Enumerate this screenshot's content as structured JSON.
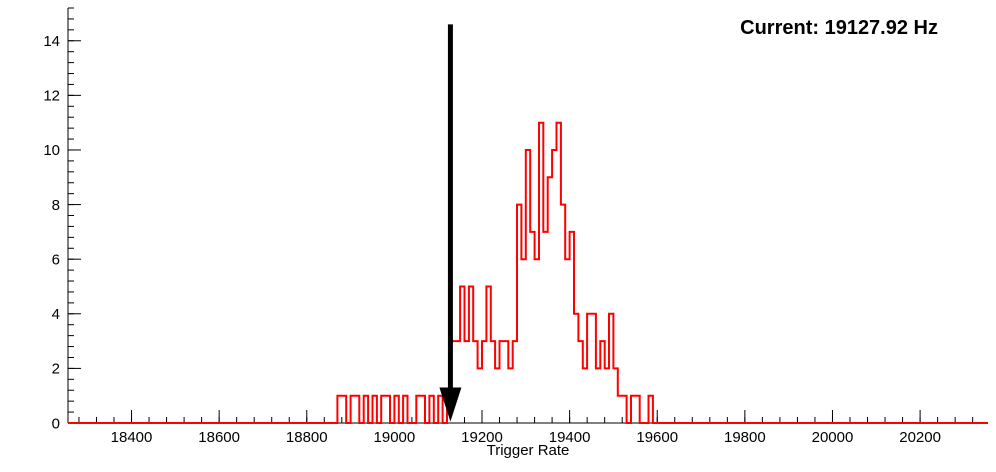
{
  "chart_data": {
    "type": "bar",
    "subtype": "step-histogram",
    "title": "",
    "xlabel": "Trigger Rate",
    "ylabel": "",
    "annotation": "Current: 19127.92 Hz",
    "annotation_color": "#000000",
    "series_color": "#ff0000",
    "axis_color": "#000000",
    "grid": false,
    "legend_position": "none",
    "xlim": [
      18255,
      20355
    ],
    "ylim": [
      0,
      15.2
    ],
    "x_major_ticks": [
      18400,
      18600,
      18800,
      19000,
      19200,
      19400,
      19600,
      19800,
      20000,
      20200
    ],
    "x_minor_step": 40,
    "y_major_ticks": [
      0,
      2,
      4,
      6,
      8,
      10,
      12,
      14
    ],
    "y_minor_step": 0.4,
    "marker": {
      "shape": "down-arrow",
      "x": 19127.92,
      "y_top": 14.6,
      "color": "#000000"
    },
    "bins": {
      "start": 18860,
      "width": 10,
      "counts": [
        0,
        1,
        1,
        0,
        1,
        1,
        0,
        1,
        0,
        1,
        0,
        1,
        1,
        0,
        1,
        0,
        1,
        0,
        0,
        1,
        1,
        0,
        1,
        0,
        1,
        0,
        1,
        3,
        3,
        5,
        3,
        5,
        3,
        2,
        3,
        5,
        3,
        2,
        3,
        3,
        2,
        3,
        8,
        6,
        10,
        7,
        6,
        11,
        7,
        9,
        10,
        11,
        8,
        6,
        7,
        4,
        3,
        2,
        4,
        4,
        2,
        3,
        2,
        4,
        2,
        1,
        1,
        0,
        1,
        1,
        0,
        0,
        1,
        0
      ]
    }
  }
}
